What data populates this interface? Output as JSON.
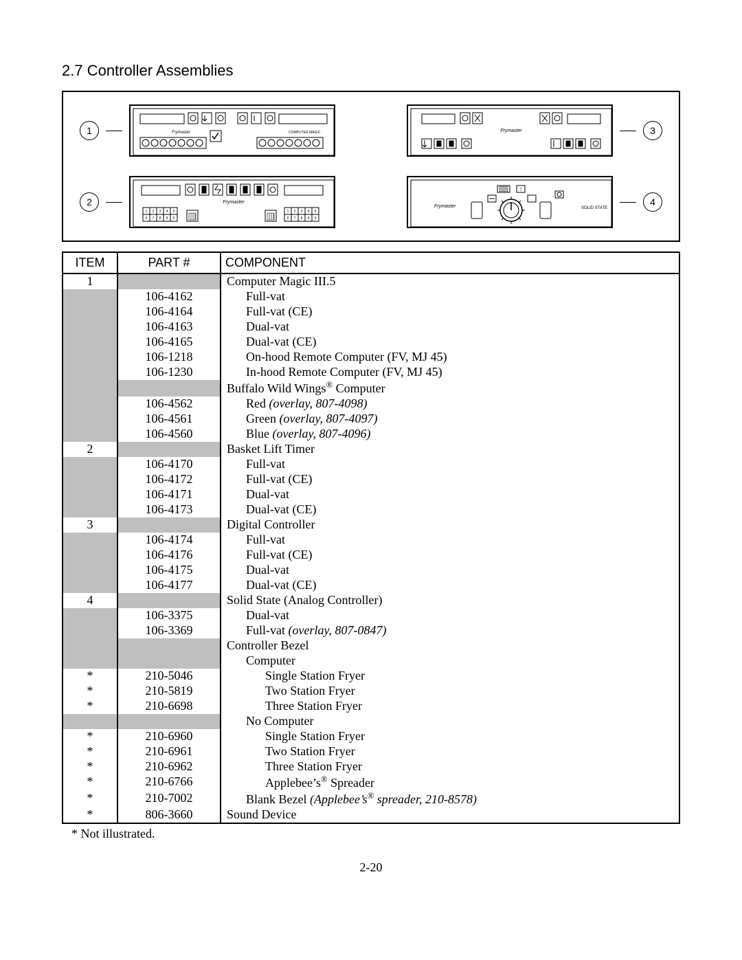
{
  "section_title": "2.7 Controller Assemblies",
  "callouts": {
    "c1": "1",
    "c2": "2",
    "c3": "3",
    "c4": "4"
  },
  "panel_labels": {
    "frymaster": "Frymaster",
    "computer_magic": "COMPUTER MAGIC",
    "solid_state": "SOLID STATE"
  },
  "keypad_digits": {
    "top": [
      "1",
      "2",
      "3",
      "4",
      "5"
    ],
    "bot": [
      "6",
      "7",
      "8",
      "9",
      "0"
    ]
  },
  "table": {
    "headers": {
      "item": "ITEM",
      "part": "PART #",
      "component": "COMPONENT"
    },
    "rows": [
      {
        "item": "1",
        "part": "",
        "component": "Computer Magic III.5",
        "indent": 0,
        "shade_item": false,
        "shade_part": true,
        "shade_comp": false
      },
      {
        "item": "",
        "part": "106-4162",
        "component": "Full-vat",
        "indent": 1,
        "shade_item": true,
        "shade_part": false,
        "shade_comp": false
      },
      {
        "item": "",
        "part": "106-4164",
        "component": "Full-vat (CE)",
        "indent": 1,
        "shade_item": true,
        "shade_part": false,
        "shade_comp": false
      },
      {
        "item": "",
        "part": "106-4163",
        "component": "Dual-vat",
        "indent": 1,
        "shade_item": true,
        "shade_part": false,
        "shade_comp": false
      },
      {
        "item": "",
        "part": "106-4165",
        "component": "Dual-vat (CE)",
        "indent": 1,
        "shade_item": true,
        "shade_part": false,
        "shade_comp": false
      },
      {
        "item": "",
        "part": "106-1218",
        "component": "On-hood Remote Computer (FV, MJ 45)",
        "indent": 1,
        "shade_item": true,
        "shade_part": false,
        "shade_comp": false
      },
      {
        "item": "",
        "part": "106-1230",
        "component": "In-hood Remote Computer (FV, MJ 45)",
        "indent": 1,
        "shade_item": true,
        "shade_part": false,
        "shade_comp": false
      },
      {
        "item": "",
        "part": "",
        "component_html": "Buffalo Wild Wings<sup>®</sup> Computer",
        "indent": 0,
        "shade_item": true,
        "shade_part": true,
        "shade_comp": false
      },
      {
        "item": "",
        "part": "106-4562",
        "component_html": "Red <span class='ital'>overlay</span>, 807-4098)",
        "component_prefix": "Red (",
        "full_html": "Red <span class='ital'>(overlay, 807-4098)</span>",
        "use": "html2",
        "indent": 1,
        "shade_item": true,
        "shade_part": false,
        "shade_comp": false
      },
      {
        "item": "",
        "part": "106-4561",
        "full_html": "Green <span class='ital'>(overlay, 807-4097)</span>",
        "use": "html2",
        "indent": 1,
        "shade_item": true,
        "shade_part": false,
        "shade_comp": false
      },
      {
        "item": "",
        "part": "106-4560",
        "full_html": "Blue <span class='ital'>(overlay, 807-4096)</span>",
        "use": "html2",
        "indent": 1,
        "shade_item": true,
        "shade_part": false,
        "shade_comp": false
      },
      {
        "item": "2",
        "part": "",
        "component": "Basket Lift Timer",
        "indent": 0,
        "shade_item": false,
        "shade_part": true,
        "shade_comp": false
      },
      {
        "item": "",
        "part": "106-4170",
        "component": "Full-vat",
        "indent": 1,
        "shade_item": true,
        "shade_part": false,
        "shade_comp": false
      },
      {
        "item": "",
        "part": "106-4172",
        "component": "Full-vat (CE)",
        "indent": 1,
        "shade_item": true,
        "shade_part": false,
        "shade_comp": false
      },
      {
        "item": "",
        "part": "106-4171",
        "component": "Dual-vat",
        "indent": 1,
        "shade_item": true,
        "shade_part": false,
        "shade_comp": false
      },
      {
        "item": "",
        "part": "106-4173",
        "component": "Dual-vat (CE)",
        "indent": 1,
        "shade_item": true,
        "shade_part": false,
        "shade_comp": false
      },
      {
        "item": "3",
        "part": "",
        "component": "Digital Controller",
        "indent": 0,
        "shade_item": false,
        "shade_part": true,
        "shade_comp": false
      },
      {
        "item": "",
        "part": "106-4174",
        "component": "Full-vat",
        "indent": 1,
        "shade_item": true,
        "shade_part": false,
        "shade_comp": false
      },
      {
        "item": "",
        "part": "106-4176",
        "component": "Full-vat (CE)",
        "indent": 1,
        "shade_item": true,
        "shade_part": false,
        "shade_comp": false
      },
      {
        "item": "",
        "part": "106-4175",
        "component": "Dual-vat",
        "indent": 1,
        "shade_item": true,
        "shade_part": false,
        "shade_comp": false
      },
      {
        "item": "",
        "part": "106-4177",
        "component": "Dual-vat (CE)",
        "indent": 1,
        "shade_item": true,
        "shade_part": false,
        "shade_comp": false
      },
      {
        "item": "4",
        "part": "",
        "component": "Solid State (Analog Controller)",
        "indent": 0,
        "shade_item": false,
        "shade_part": true,
        "shade_comp": false
      },
      {
        "item": "",
        "part": "106-3375",
        "component": "Dual-vat",
        "indent": 1,
        "shade_item": true,
        "shade_part": false,
        "shade_comp": false
      },
      {
        "item": "",
        "part": "106-3369",
        "full_html": "Full-vat <span class='ital'>(overlay, 807-0847)</span>",
        "use": "html2",
        "indent": 1,
        "shade_item": true,
        "shade_part": false,
        "shade_comp": false
      },
      {
        "item": "",
        "part": "",
        "component": "Controller Bezel",
        "indent": 0,
        "shade_item": true,
        "shade_part": true,
        "shade_comp": false
      },
      {
        "item": "",
        "part": "",
        "component": "Computer",
        "indent": 1,
        "shade_item": true,
        "shade_part": true,
        "shade_comp": false
      },
      {
        "item": "*",
        "part": "210-5046",
        "component": "Single Station Fryer",
        "indent": 2,
        "shade_item": false,
        "shade_part": false,
        "shade_comp": false
      },
      {
        "item": "*",
        "part": "210-5819",
        "component": "Two Station Fryer",
        "indent": 2,
        "shade_item": false,
        "shade_part": false,
        "shade_comp": false
      },
      {
        "item": "*",
        "part": "210-6698",
        "component": "Three Station Fryer",
        "indent": 2,
        "shade_item": false,
        "shade_part": false,
        "shade_comp": false
      },
      {
        "item": "",
        "part": "",
        "component": "No Computer",
        "indent": 1,
        "shade_item": true,
        "shade_part": true,
        "shade_comp": false
      },
      {
        "item": "*",
        "part": "210-6960",
        "component": "Single Station Fryer",
        "indent": 2,
        "shade_item": false,
        "shade_part": false,
        "shade_comp": false
      },
      {
        "item": "*",
        "part": "210-6961",
        "component": "Two Station Fryer",
        "indent": 2,
        "shade_item": false,
        "shade_part": false,
        "shade_comp": false
      },
      {
        "item": "*",
        "part": "210-6962",
        "component": "Three Station Fryer",
        "indent": 2,
        "shade_item": false,
        "shade_part": false,
        "shade_comp": false
      },
      {
        "item": "*",
        "part": "210-6766",
        "full_html": "Applebee’s<sup>®</sup> Spreader",
        "use": "html2",
        "indent": 2,
        "shade_item": false,
        "shade_part": false,
        "shade_comp": false
      },
      {
        "item": "*",
        "part": "210-7002",
        "full_html": "Blank Bezel <span class='ital'>(Applebee’s<sup>®</sup> spreader, 210-8578)</span>",
        "use": "html2",
        "indent": 1,
        "shade_item": false,
        "shade_part": false,
        "shade_comp": false
      },
      {
        "item": "*",
        "part": "806-3660",
        "component": "Sound Device",
        "indent": 0,
        "shade_item": false,
        "shade_part": false,
        "shade_comp": false
      }
    ]
  },
  "footnote": "* Not illustrated.",
  "page_number": "2-20",
  "colors": {
    "shade": "#bfbfbf",
    "line": "#000000",
    "bg": "#ffffff"
  }
}
